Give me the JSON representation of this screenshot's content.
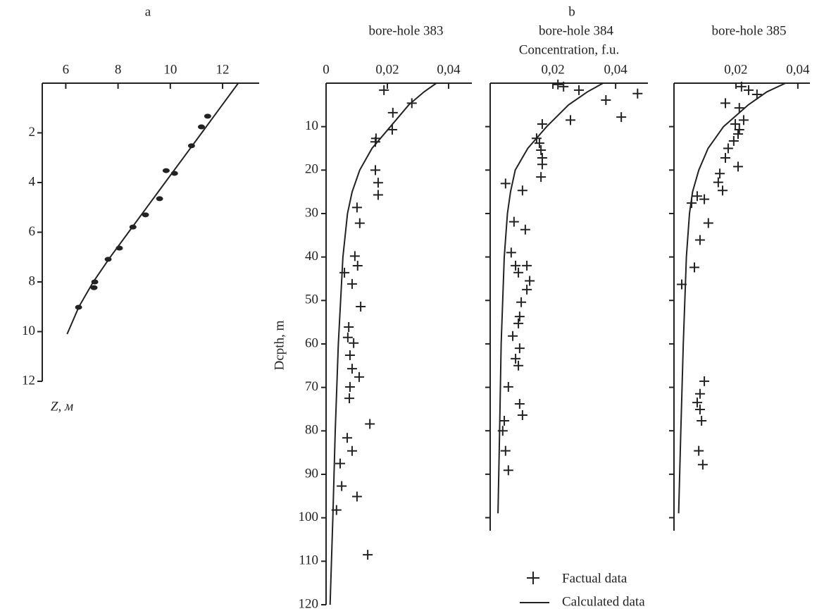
{
  "group_label": "b",
  "legend": [
    {
      "label": "Factual data",
      "marker": "plus"
    },
    {
      "label": "Calculated data",
      "marker": "line"
    }
  ],
  "chart_data": [
    {
      "type": "scatter",
      "title": "a",
      "ylabel": "Z, м",
      "marker": "dot",
      "x_axis_position": "top",
      "y_inverted": true,
      "ytick_labels": true,
      "xlim": [
        5.1,
        13.4
      ],
      "ylim": [
        0,
        12
      ],
      "xticks": [
        6,
        8,
        10,
        12
      ],
      "yticks": [
        2,
        4,
        6,
        8,
        10,
        12
      ],
      "points": {
        "x": [
          11.43,
          11.19,
          10.81,
          9.84,
          10.16,
          9.59,
          9.05,
          8.57,
          8.05,
          7.62,
          7.11,
          7.08,
          6.49
        ],
        "y": [
          1.33,
          1.76,
          2.52,
          3.52,
          3.63,
          4.65,
          5.3,
          5.79,
          6.64,
          7.09,
          8.0,
          8.23,
          9.02
        ]
      },
      "curve": {
        "x": [
          12.6,
          11.9,
          11.2,
          10.5,
          9.8,
          9.1,
          8.4,
          7.7,
          7.05,
          6.5,
          6.05
        ],
        "y": [
          0,
          1,
          2,
          3,
          4,
          5,
          6,
          7,
          8,
          9,
          10.1
        ]
      }
    },
    {
      "type": "scatter",
      "title": "bore-hole 383",
      "ylabel": "Dcpth, m",
      "marker": "plus",
      "x_axis_position": "top",
      "y_inverted": true,
      "ytick_labels": true,
      "xlim": [
        0,
        0.0476
      ],
      "ylim": [
        0,
        120
      ],
      "xticks": [
        0,
        {
          "value": 0.02,
          "label": "0,02"
        },
        {
          "value": 0.04,
          "label": "0,04"
        }
      ],
      "yticks": [
        10,
        20,
        30,
        40,
        50,
        60,
        70,
        80,
        90,
        100,
        110,
        120
      ],
      "points": {
        "x": [
          0.0189,
          0.028,
          0.0218,
          0.0216,
          0.0163,
          0.0161,
          0.0161,
          0.017,
          0.017,
          0.0101,
          0.011,
          0.0094,
          0.0103,
          0.006,
          0.0085,
          0.0113,
          0.0074,
          0.0071,
          0.009,
          0.0078,
          0.0085,
          0.0108,
          0.0078,
          0.0076,
          0.0143,
          0.0069,
          0.0085,
          0.0046,
          0.0051,
          0.0101,
          0.0034,
          0.0136
        ],
        "y": [
          1.6,
          4.6,
          6.8,
          10.7,
          12.7,
          13.5,
          20.0,
          22.9,
          25.7,
          28.6,
          32.2,
          39.8,
          42.0,
          43.6,
          46.2,
          51.4,
          56.1,
          58.5,
          59.8,
          62.6,
          65.7,
          67.6,
          69.9,
          72.5,
          78.4,
          81.6,
          84.6,
          87.5,
          92.7,
          95.1,
          98.2,
          108.5
        ]
      },
      "curve": {
        "x": [
          0.036,
          0.032,
          0.027,
          0.021,
          0.015,
          0.011,
          0.0085,
          0.007,
          0.0055,
          0.004,
          0.003,
          0.0022,
          0.0013
        ],
        "y": [
          0,
          2,
          5,
          10,
          15,
          20,
          25,
          30,
          40,
          60,
          80,
          100,
          120
        ]
      }
    },
    {
      "type": "scatter",
      "title": "bore-hole 384",
      "xlabel": "Concentration, f.u.",
      "marker": "plus",
      "x_axis_position": "top",
      "y_inverted": true,
      "ytick_labels": false,
      "xlim": [
        0,
        0.0503
      ],
      "ylim": [
        0,
        103
      ],
      "xticks": [
        {
          "value": 0.02,
          "label": "0,02"
        },
        {
          "value": 0.04,
          "label": "0,04"
        }
      ],
      "yticks": [
        10,
        20,
        30,
        40,
        50,
        60,
        70,
        80,
        90,
        100
      ],
      "points": {
        "x": [
          0.0216,
          0.0234,
          0.0283,
          0.047,
          0.0369,
          0.0418,
          0.0256,
          0.0166,
          0.0148,
          0.0157,
          0.0162,
          0.0166,
          0.0166,
          0.0162,
          0.0049,
          0.0103,
          0.0076,
          0.0112,
          0.0067,
          0.0081,
          0.0117,
          0.009,
          0.0126,
          0.0117,
          0.0099,
          0.0094,
          0.009,
          0.0072,
          0.0094,
          0.0081,
          0.009,
          0.0058,
          0.0094,
          0.0103,
          0.0045,
          0.004,
          0.0049,
          0.0058
        ],
        "y": [
          0.3,
          0.8,
          1.6,
          2.4,
          3.9,
          7.8,
          8.5,
          9.4,
          12.7,
          13.8,
          15.4,
          17.2,
          18.7,
          21.6,
          23.1,
          24.7,
          31.9,
          33.7,
          39.0,
          42.0,
          42.0,
          43.6,
          45.5,
          47.5,
          50.4,
          53.7,
          55.3,
          58.2,
          61.0,
          63.4,
          65.0,
          69.9,
          73.8,
          76.4,
          77.7,
          80.0,
          84.6,
          89.1
        ]
      },
      "curve": {
        "x": [
          0.036,
          0.031,
          0.025,
          0.018,
          0.012,
          0.008,
          0.0065,
          0.0055,
          0.0045,
          0.0035,
          0.003,
          0.0025
        ],
        "y": [
          0,
          2,
          5,
          10,
          15,
          20,
          25,
          30,
          40,
          60,
          80,
          99
        ]
      }
    },
    {
      "type": "scatter",
      "title": "bore-hole 385",
      "marker": "plus",
      "x_axis_position": "top",
      "y_inverted": true,
      "ytick_labels": false,
      "xlim": [
        0,
        0.0439
      ],
      "ylim": [
        0,
        103
      ],
      "xticks": [
        {
          "value": 0.02,
          "label": "0,02"
        },
        {
          "value": 0.04,
          "label": "0,04"
        }
      ],
      "yticks": [
        10,
        20,
        30,
        40,
        50,
        60,
        70,
        80,
        90,
        100
      ],
      "points": {
        "x": [
          0.0218,
          0.0241,
          0.0268,
          0.0166,
          0.0211,
          0.0225,
          0.0198,
          0.0211,
          0.0207,
          0.0193,
          0.0175,
          0.0166,
          0.0207,
          0.0148,
          0.0143,
          0.0157,
          0.0075,
          0.0098,
          0.0057,
          0.0111,
          0.0084,
          0.0066,
          0.0025,
          0.0098,
          0.0084,
          0.0075,
          0.0084,
          0.0089,
          0.008,
          0.0093
        ],
        "y": [
          0.8,
          1.6,
          2.6,
          4.6,
          5.7,
          8.5,
          9.4,
          10.7,
          11.7,
          13.3,
          15.0,
          17.2,
          19.2,
          20.8,
          22.8,
          24.7,
          26.0,
          26.7,
          27.6,
          32.2,
          36.1,
          42.4,
          46.3,
          68.6,
          71.5,
          73.5,
          75.1,
          77.7,
          84.6,
          87.8
        ]
      },
      "curve": {
        "x": [
          0.036,
          0.03,
          0.024,
          0.016,
          0.011,
          0.008,
          0.006,
          0.005,
          0.004,
          0.003,
          0.0022,
          0.0015
        ],
        "y": [
          0,
          2,
          5,
          10,
          15,
          20,
          25,
          30,
          40,
          60,
          80,
          99
        ]
      }
    }
  ]
}
